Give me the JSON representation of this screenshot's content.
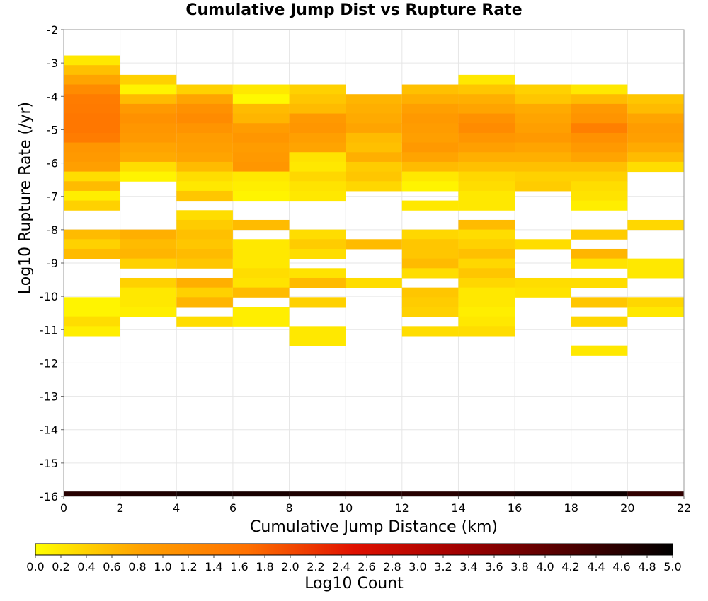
{
  "chart_data": {
    "type": "heatmap",
    "title": "Cumulative Jump Dist vs Rupture Rate",
    "xlabel": "Cumulative Jump Distance (km)",
    "ylabel": "Log10 Rupture Rate (/yr)",
    "xlim": [
      0,
      22
    ],
    "ylim": [
      -16,
      -2
    ],
    "x_ticks": [
      0,
      2,
      4,
      6,
      8,
      10,
      12,
      14,
      16,
      18,
      20,
      22
    ],
    "y_ticks": [
      -2,
      -3,
      -4,
      -5,
      -6,
      -7,
      -8,
      -9,
      -10,
      -11,
      -12,
      -13,
      -14,
      -15,
      -16
    ],
    "x_bin_width": 2,
    "y_bin_height": 0.29,
    "grid": true,
    "colorbar": {
      "label": "Log10 Count",
      "range": [
        0,
        5
      ],
      "ticks": [
        "0.0",
        "0.2",
        "0.4",
        "0.6",
        "0.8",
        "1.0",
        "1.2",
        "1.4",
        "1.6",
        "1.8",
        "2.0",
        "2.2",
        "2.4",
        "2.6",
        "2.8",
        "3.0",
        "3.2",
        "3.4",
        "3.6",
        "3.8",
        "4.0",
        "4.2",
        "4.4",
        "4.6",
        "4.8",
        "5.0"
      ],
      "colors": [
        "#ffff00",
        "#ffa000",
        "#ff7000",
        "#e01000",
        "#a00000",
        "#500000",
        "#000000"
      ]
    },
    "columns": [
      {
        "x": 0,
        "cells": [
          [
            -2.92,
            0.2
          ],
          [
            -3.21,
            0.55
          ],
          [
            -3.5,
            0.8
          ],
          [
            -3.79,
            1.2
          ],
          [
            -4.08,
            1.45
          ],
          [
            -4.37,
            1.5
          ],
          [
            -4.66,
            1.55
          ],
          [
            -4.95,
            1.55
          ],
          [
            -5.24,
            1.45
          ],
          [
            -5.53,
            1.0
          ],
          [
            -5.82,
            0.95
          ],
          [
            -6.11,
            0.85
          ],
          [
            -6.4,
            0.3
          ],
          [
            -6.69,
            0.6
          ],
          [
            -6.98,
            0.15
          ],
          [
            -7.27,
            0.4
          ],
          [
            -8.14,
            0.6
          ],
          [
            -8.43,
            0.4
          ],
          [
            -8.72,
            0.6
          ],
          [
            -10.17,
            0.1
          ],
          [
            -10.46,
            0.1
          ],
          [
            -10.75,
            0.3
          ],
          [
            -11.04,
            0.15
          ]
        ]
      },
      {
        "x": 2,
        "cells": [
          [
            -3.5,
            0.4
          ],
          [
            -3.79,
            0.1
          ],
          [
            -4.08,
            0.6
          ],
          [
            -4.37,
            0.95
          ],
          [
            -4.66,
            1.1
          ],
          [
            -4.95,
            1.0
          ],
          [
            -5.24,
            0.95
          ],
          [
            -5.53,
            0.8
          ],
          [
            -5.82,
            0.75
          ],
          [
            -6.11,
            0.3
          ],
          [
            -6.4,
            0.1
          ],
          [
            -8.14,
            0.7
          ],
          [
            -8.43,
            0.6
          ],
          [
            -8.72,
            0.65
          ],
          [
            -9.01,
            0.4
          ],
          [
            -9.59,
            0.4
          ],
          [
            -9.88,
            0.2
          ],
          [
            -10.17,
            0.2
          ],
          [
            -10.46,
            0.15
          ]
        ]
      },
      {
        "x": 4,
        "cells": [
          [
            -3.79,
            0.4
          ],
          [
            -4.08,
            0.8
          ],
          [
            -4.37,
            1.1
          ],
          [
            -4.66,
            1.2
          ],
          [
            -4.95,
            1.05
          ],
          [
            -5.24,
            0.9
          ],
          [
            -5.53,
            0.85
          ],
          [
            -5.82,
            0.8
          ],
          [
            -6.11,
            0.6
          ],
          [
            -6.4,
            0.3
          ],
          [
            -6.69,
            0.2
          ],
          [
            -6.98,
            0.5
          ],
          [
            -7.56,
            0.3
          ],
          [
            -7.85,
            0.45
          ],
          [
            -8.14,
            0.55
          ],
          [
            -8.43,
            0.5
          ],
          [
            -8.72,
            0.6
          ],
          [
            -9.01,
            0.5
          ],
          [
            -9.59,
            0.7
          ],
          [
            -9.88,
            0.4
          ],
          [
            -10.17,
            0.65
          ],
          [
            -10.75,
            0.3
          ]
        ]
      },
      {
        "x": 6,
        "cells": [
          [
            -3.79,
            0.2
          ],
          [
            -4.08,
            0.05
          ],
          [
            -4.37,
            0.6
          ],
          [
            -4.66,
            0.65
          ],
          [
            -4.95,
            0.9
          ],
          [
            -5.24,
            1.0
          ],
          [
            -5.53,
            0.9
          ],
          [
            -5.82,
            0.95
          ],
          [
            -6.11,
            1.0
          ],
          [
            -6.4,
            0.2
          ],
          [
            -6.69,
            0.15
          ],
          [
            -6.98,
            0.1
          ],
          [
            -7.85,
            0.6
          ],
          [
            -8.43,
            0.2
          ],
          [
            -8.72,
            0.2
          ],
          [
            -9.01,
            0.2
          ],
          [
            -9.3,
            0.3
          ],
          [
            -9.59,
            0.25
          ],
          [
            -9.88,
            0.6
          ],
          [
            -10.46,
            0.15
          ],
          [
            -10.75,
            0.15
          ]
        ]
      },
      {
        "x": 8,
        "cells": [
          [
            -3.79,
            0.4
          ],
          [
            -4.08,
            0.5
          ],
          [
            -4.37,
            0.6
          ],
          [
            -4.66,
            0.95
          ],
          [
            -4.95,
            1.0
          ],
          [
            -5.24,
            0.85
          ],
          [
            -5.53,
            0.8
          ],
          [
            -5.82,
            0.25
          ],
          [
            -6.11,
            0.2
          ],
          [
            -6.4,
            0.35
          ],
          [
            -6.69,
            0.25
          ],
          [
            -6.98,
            0.2
          ],
          [
            -8.14,
            0.3
          ],
          [
            -8.43,
            0.45
          ],
          [
            -8.72,
            0.3
          ],
          [
            -9.3,
            0.25
          ],
          [
            -9.59,
            0.6
          ],
          [
            -10.17,
            0.4
          ],
          [
            -11.04,
            0.2
          ],
          [
            -11.33,
            0.2
          ]
        ]
      },
      {
        "x": 10,
        "cells": [
          [
            -4.08,
            0.65
          ],
          [
            -4.37,
            0.7
          ],
          [
            -4.66,
            0.75
          ],
          [
            -4.95,
            0.8
          ],
          [
            -5.24,
            0.6
          ],
          [
            -5.53,
            0.55
          ],
          [
            -5.82,
            0.7
          ],
          [
            -6.11,
            0.45
          ],
          [
            -6.4,
            0.5
          ],
          [
            -6.69,
            0.35
          ],
          [
            -8.43,
            0.6
          ],
          [
            -9.59,
            0.3
          ]
        ]
      },
      {
        "x": 12,
        "cells": [
          [
            -3.79,
            0.55
          ],
          [
            -4.08,
            0.7
          ],
          [
            -4.37,
            0.85
          ],
          [
            -4.66,
            0.95
          ],
          [
            -4.95,
            0.9
          ],
          [
            -5.24,
            0.85
          ],
          [
            -5.53,
            0.95
          ],
          [
            -5.82,
            0.8
          ],
          [
            -6.11,
            0.6
          ],
          [
            -6.4,
            0.2
          ],
          [
            -6.69,
            0.1
          ],
          [
            -7.27,
            0.2
          ],
          [
            -8.14,
            0.35
          ],
          [
            -8.43,
            0.5
          ],
          [
            -8.72,
            0.5
          ],
          [
            -9.01,
            0.6
          ],
          [
            -9.3,
            0.3
          ],
          [
            -9.88,
            0.5
          ],
          [
            -10.17,
            0.45
          ],
          [
            -10.46,
            0.4
          ],
          [
            -11.04,
            0.3
          ]
        ]
      },
      {
        "x": 14,
        "cells": [
          [
            -3.5,
            0.2
          ],
          [
            -3.79,
            0.5
          ],
          [
            -4.08,
            0.7
          ],
          [
            -4.37,
            0.8
          ],
          [
            -4.66,
            1.1
          ],
          [
            -4.95,
            1.2
          ],
          [
            -5.24,
            1.0
          ],
          [
            -5.53,
            0.85
          ],
          [
            -5.82,
            0.7
          ],
          [
            -6.11,
            0.55
          ],
          [
            -6.4,
            0.35
          ],
          [
            -6.69,
            0.3
          ],
          [
            -6.98,
            0.2
          ],
          [
            -7.27,
            0.2
          ],
          [
            -7.85,
            0.6
          ],
          [
            -8.14,
            0.3
          ],
          [
            -8.43,
            0.4
          ],
          [
            -8.72,
            0.55
          ],
          [
            -9.01,
            0.35
          ],
          [
            -9.3,
            0.5
          ],
          [
            -9.59,
            0.35
          ],
          [
            -9.88,
            0.2
          ],
          [
            -10.17,
            0.2
          ],
          [
            -10.46,
            0.15
          ],
          [
            -10.75,
            0.2
          ],
          [
            -11.04,
            0.3
          ]
        ]
      },
      {
        "x": 16,
        "cells": [
          [
            -3.79,
            0.4
          ],
          [
            -4.08,
            0.5
          ],
          [
            -4.37,
            0.75
          ],
          [
            -4.66,
            0.8
          ],
          [
            -4.95,
            0.85
          ],
          [
            -5.24,
            0.95
          ],
          [
            -5.53,
            0.8
          ],
          [
            -5.82,
            0.7
          ],
          [
            -6.11,
            0.55
          ],
          [
            -6.4,
            0.4
          ],
          [
            -6.69,
            0.45
          ],
          [
            -8.43,
            0.3
          ],
          [
            -9.59,
            0.3
          ],
          [
            -9.88,
            0.25
          ]
        ]
      },
      {
        "x": 18,
        "cells": [
          [
            -3.79,
            0.2
          ],
          [
            -4.08,
            0.6
          ],
          [
            -4.37,
            0.95
          ],
          [
            -4.66,
            1.05
          ],
          [
            -4.95,
            1.4
          ],
          [
            -5.24,
            1.1
          ],
          [
            -5.53,
            0.95
          ],
          [
            -5.82,
            0.8
          ],
          [
            -6.11,
            0.55
          ],
          [
            -6.4,
            0.4
          ],
          [
            -6.69,
            0.3
          ],
          [
            -6.98,
            0.25
          ],
          [
            -7.27,
            0.15
          ],
          [
            -8.14,
            0.45
          ],
          [
            -8.72,
            0.65
          ],
          [
            -9.01,
            0.25
          ],
          [
            -9.59,
            0.3
          ],
          [
            -10.17,
            0.5
          ],
          [
            -10.75,
            0.35
          ],
          [
            -11.62,
            0.2
          ]
        ]
      },
      {
        "x": 20,
        "cells": [
          [
            -4.08,
            0.5
          ],
          [
            -4.37,
            0.6
          ],
          [
            -4.66,
            0.8
          ],
          [
            -4.95,
            0.9
          ],
          [
            -5.24,
            0.85
          ],
          [
            -5.53,
            0.75
          ],
          [
            -5.82,
            0.6
          ],
          [
            -6.11,
            0.3
          ],
          [
            -7.85,
            0.35
          ],
          [
            -9.01,
            0.2
          ],
          [
            -9.3,
            0.2
          ],
          [
            -10.17,
            0.35
          ],
          [
            -10.46,
            0.2
          ]
        ]
      }
    ],
    "bottom_band": {
      "y": -16,
      "values": [
        4.6,
        4.7,
        4.8,
        4.75,
        4.7,
        4.65,
        4.6,
        4.7,
        4.8,
        4.85,
        4.5
      ]
    }
  }
}
